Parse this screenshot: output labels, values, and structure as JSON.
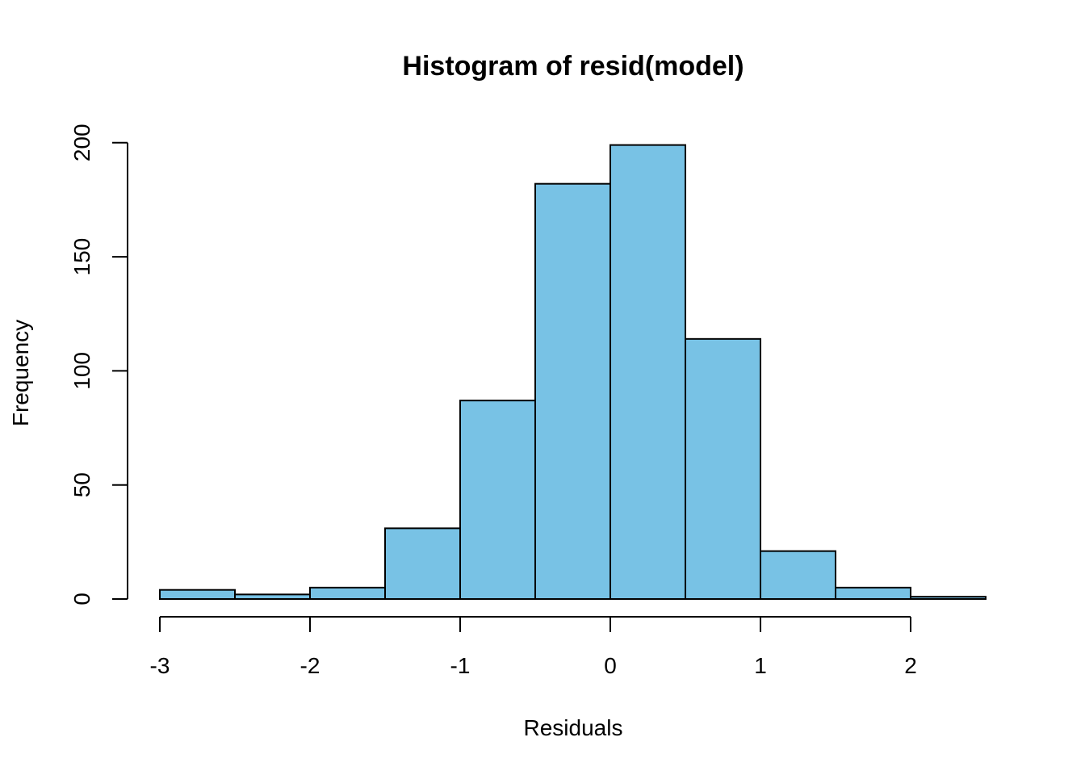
{
  "chart_data": {
    "type": "bar",
    "title": "Histogram of resid(model)",
    "xlabel": "Residuals",
    "ylabel": "Frequency",
    "bin_edges": [
      -3,
      -2.5,
      -2,
      -1.5,
      -1,
      -0.5,
      0,
      0.5,
      1,
      1.5,
      2,
      2.5
    ],
    "values": [
      4,
      2,
      5,
      31,
      87,
      182,
      199,
      114,
      21,
      5,
      1
    ],
    "xlim": [
      -3,
      2.5
    ],
    "ylim": [
      0,
      200
    ],
    "x_ticks": [
      -3,
      -2,
      -1,
      0,
      1,
      2
    ],
    "x_tick_labels": [
      "-3",
      "-2",
      "-1",
      "0",
      "1",
      "2"
    ],
    "y_ticks": [
      0,
      50,
      100,
      150,
      200
    ],
    "y_tick_labels": [
      "0",
      "50",
      "100",
      "150",
      "200"
    ],
    "bar_color": "#78C2E5",
    "grid": false
  }
}
